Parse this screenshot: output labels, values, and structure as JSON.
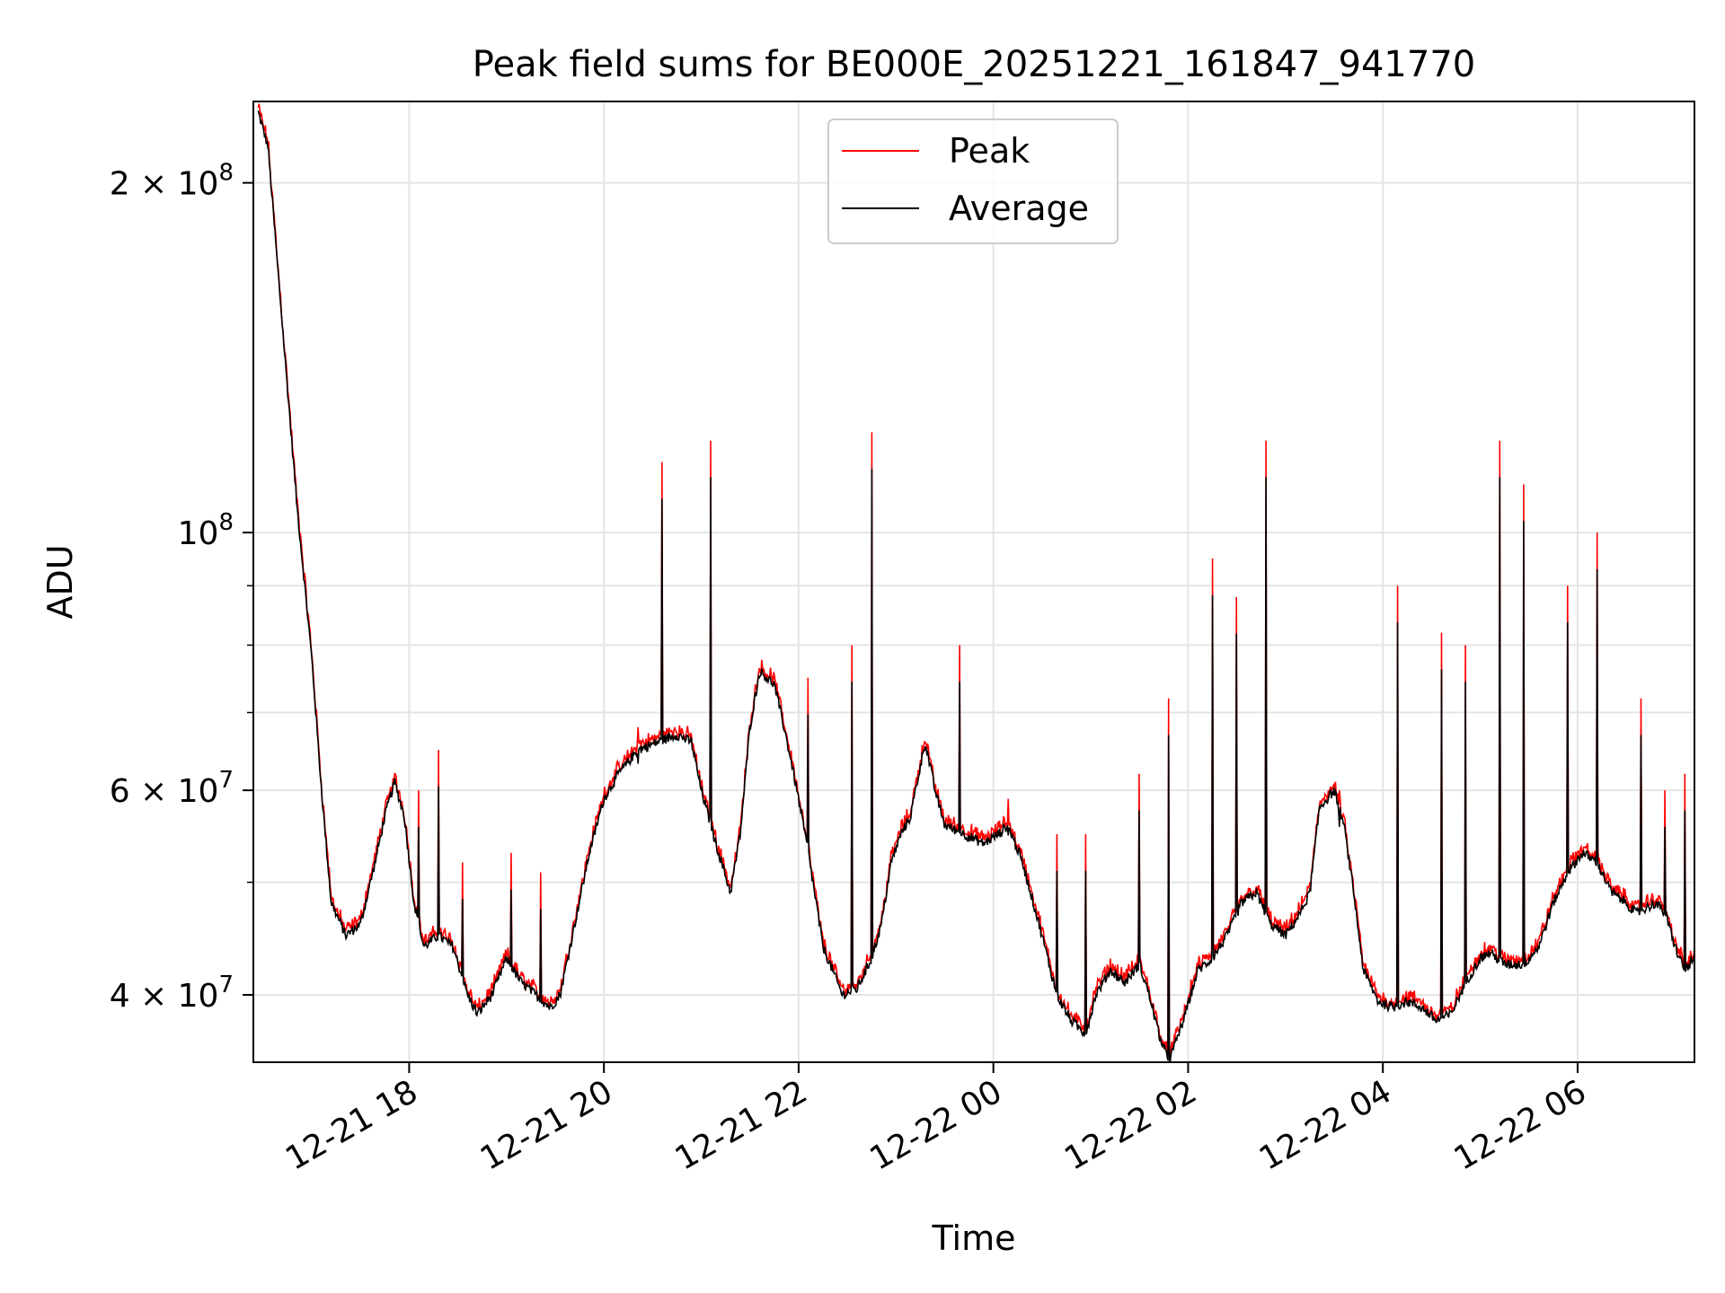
{
  "chart_data": {
    "type": "line",
    "title": "Peak field sums for BE000E_20251221_161847_941770",
    "xlabel": "Time",
    "ylabel": "ADU",
    "yscale": "log",
    "xlim": [
      16.4,
      31.2
    ],
    "ylim": [
      35000000,
      235000000
    ],
    "grid": true,
    "legend_position": "top-center",
    "x_ticks": [
      {
        "value": 18,
        "label": "12-21 18"
      },
      {
        "value": 20,
        "label": "12-21 20"
      },
      {
        "value": 22,
        "label": "12-21 22"
      },
      {
        "value": 24,
        "label": "12-22 00"
      },
      {
        "value": 26,
        "label": "12-22 02"
      },
      {
        "value": 28,
        "label": "12-22 04"
      },
      {
        "value": 30,
        "label": "12-22 06"
      }
    ],
    "y_major_ticks": [
      {
        "value": 40000000,
        "mantissa": "4",
        "exp": "7"
      },
      {
        "value": 60000000,
        "mantissa": "6",
        "exp": "7"
      },
      {
        "value": 100000000,
        "mantissa": "",
        "exp": "8"
      },
      {
        "value": 200000000,
        "mantissa": "2",
        "exp": "8"
      }
    ],
    "y_minor_gridlines": [
      50000000,
      70000000,
      80000000,
      90000000
    ],
    "base_curve": [
      [
        16.45,
        230000000
      ],
      [
        16.55,
        215000000
      ],
      [
        16.7,
        150000000
      ],
      [
        16.85,
        105000000
      ],
      [
        17.0,
        78000000
      ],
      [
        17.1,
        60000000
      ],
      [
        17.2,
        48000000
      ],
      [
        17.35,
        45000000
      ],
      [
        17.5,
        46000000
      ],
      [
        17.65,
        52000000
      ],
      [
        17.75,
        57000000
      ],
      [
        17.85,
        61000000
      ],
      [
        17.95,
        57000000
      ],
      [
        18.05,
        48000000
      ],
      [
        18.15,
        44000000
      ],
      [
        18.3,
        45000000
      ],
      [
        18.45,
        44000000
      ],
      [
        18.6,
        40000000
      ],
      [
        18.7,
        38500000
      ],
      [
        18.85,
        40000000
      ],
      [
        19.0,
        43000000
      ],
      [
        19.15,
        41000000
      ],
      [
        19.3,
        40000000
      ],
      [
        19.45,
        39000000
      ],
      [
        19.55,
        40000000
      ],
      [
        19.7,
        46000000
      ],
      [
        19.85,
        53000000
      ],
      [
        20.0,
        59000000
      ],
      [
        20.15,
        62000000
      ],
      [
        20.35,
        65000000
      ],
      [
        20.55,
        66000000
      ],
      [
        20.75,
        67000000
      ],
      [
        20.9,
        66000000
      ],
      [
        21.0,
        60000000
      ],
      [
        21.15,
        54000000
      ],
      [
        21.3,
        49000000
      ],
      [
        21.4,
        55000000
      ],
      [
        21.5,
        68000000
      ],
      [
        21.6,
        76000000
      ],
      [
        21.75,
        74000000
      ],
      [
        21.85,
        68000000
      ],
      [
        21.95,
        62000000
      ],
      [
        22.1,
        53000000
      ],
      [
        22.25,
        44000000
      ],
      [
        22.45,
        40000000
      ],
      [
        22.6,
        40500000
      ],
      [
        22.75,
        43000000
      ],
      [
        22.85,
        46000000
      ],
      [
        22.95,
        52000000
      ],
      [
        23.05,
        55000000
      ],
      [
        23.15,
        57000000
      ],
      [
        23.2,
        60000000
      ],
      [
        23.3,
        66000000
      ],
      [
        23.4,
        60000000
      ],
      [
        23.5,
        56000000
      ],
      [
        23.7,
        55000000
      ],
      [
        23.9,
        54000000
      ],
      [
        24.05,
        55000000
      ],
      [
        24.15,
        56000000
      ],
      [
        24.3,
        52000000
      ],
      [
        24.5,
        45000000
      ],
      [
        24.65,
        40000000
      ],
      [
        24.8,
        38000000
      ],
      [
        24.95,
        37000000
      ],
      [
        25.05,
        40000000
      ],
      [
        25.2,
        42000000
      ],
      [
        25.35,
        41000000
      ],
      [
        25.5,
        42500000
      ],
      [
        25.6,
        40000000
      ],
      [
        25.7,
        37000000
      ],
      [
        25.8,
        35000000
      ],
      [
        25.95,
        38000000
      ],
      [
        26.1,
        42000000
      ],
      [
        26.25,
        43000000
      ],
      [
        26.4,
        45000000
      ],
      [
        26.55,
        48000000
      ],
      [
        26.7,
        49000000
      ],
      [
        26.85,
        46000000
      ],
      [
        27.0,
        45000000
      ],
      [
        27.15,
        47000000
      ],
      [
        27.25,
        49000000
      ],
      [
        27.35,
        58000000
      ],
      [
        27.5,
        60000000
      ],
      [
        27.6,
        56000000
      ],
      [
        27.7,
        49000000
      ],
      [
        27.8,
        42000000
      ],
      [
        27.95,
        39500000
      ],
      [
        28.1,
        39000000
      ],
      [
        28.25,
        39500000
      ],
      [
        28.4,
        39000000
      ],
      [
        28.55,
        38000000
      ],
      [
        28.7,
        38500000
      ],
      [
        28.85,
        41000000
      ],
      [
        29.0,
        43000000
      ],
      [
        29.1,
        43500000
      ],
      [
        29.25,
        42500000
      ],
      [
        29.45,
        42500000
      ],
      [
        29.6,
        44000000
      ],
      [
        29.75,
        48000000
      ],
      [
        29.9,
        51000000
      ],
      [
        30.05,
        53000000
      ],
      [
        30.2,
        52000000
      ],
      [
        30.35,
        49000000
      ],
      [
        30.5,
        48000000
      ],
      [
        30.6,
        47000000
      ],
      [
        30.7,
        47500000
      ],
      [
        30.8,
        48000000
      ],
      [
        30.9,
        47000000
      ],
      [
        31.0,
        44000000
      ],
      [
        31.1,
        42000000
      ],
      [
        31.2,
        43000000
      ]
    ],
    "spikes": [
      [
        18.1,
        60000000
      ],
      [
        18.3,
        65000000
      ],
      [
        18.55,
        52000000
      ],
      [
        19.05,
        53000000
      ],
      [
        19.35,
        51000000
      ],
      [
        20.35,
        68000000
      ],
      [
        20.6,
        115000000
      ],
      [
        21.1,
        120000000
      ],
      [
        22.1,
        75000000
      ],
      [
        22.55,
        80000000
      ],
      [
        22.75,
        122000000
      ],
      [
        23.65,
        80000000
      ],
      [
        24.15,
        59000000
      ],
      [
        24.65,
        55000000
      ],
      [
        24.95,
        55000000
      ],
      [
        25.5,
        62000000
      ],
      [
        25.8,
        72000000
      ],
      [
        26.25,
        95000000
      ],
      [
        26.5,
        88000000
      ],
      [
        26.8,
        120000000
      ],
      [
        27.55,
        60000000
      ],
      [
        28.15,
        90000000
      ],
      [
        28.6,
        82000000
      ],
      [
        28.85,
        80000000
      ],
      [
        29.2,
        120000000
      ],
      [
        29.45,
        110000000
      ],
      [
        29.9,
        90000000
      ],
      [
        30.2,
        100000000
      ],
      [
        30.65,
        72000000
      ],
      [
        30.9,
        60000000
      ],
      [
        31.1,
        62000000
      ]
    ],
    "series": [
      {
        "name": "Peak",
        "color": "#ff0000"
      },
      {
        "name": "Average",
        "color": "#000000"
      }
    ]
  }
}
